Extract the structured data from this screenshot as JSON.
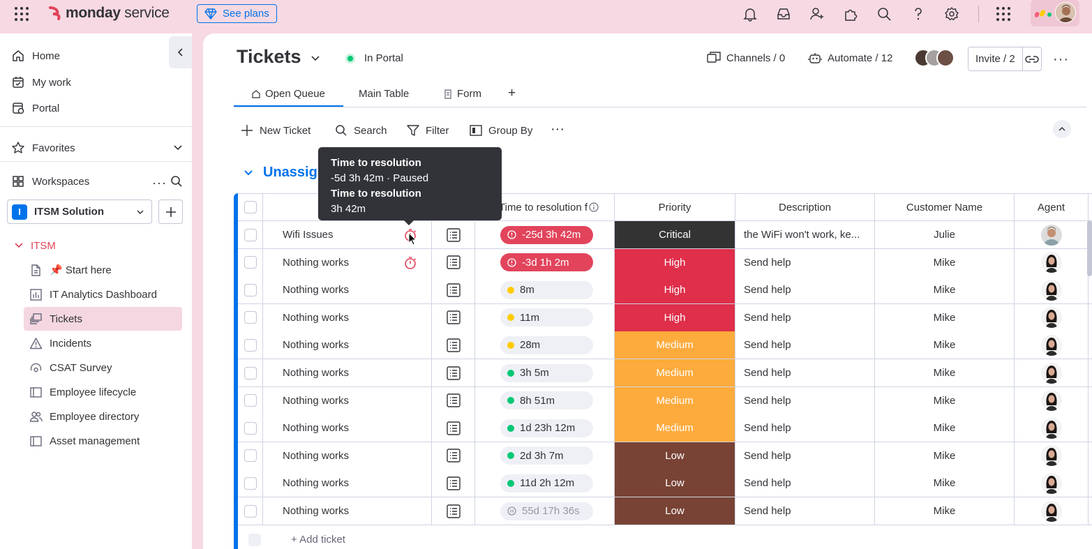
{
  "topbar": {
    "brand_bold": "monday",
    "brand_light": " service",
    "see_plans": "See plans",
    "icons": [
      "notifications-icon",
      "inbox-icon",
      "invite-members-icon",
      "apps-icon",
      "search-icon",
      "help-icon",
      "settings-icon",
      "app-launcher-icon"
    ]
  },
  "sidebar": {
    "nav": [
      {
        "label": "Home",
        "icon": "home-icon"
      },
      {
        "label": "My work",
        "icon": "my-work-icon"
      },
      {
        "label": "Portal",
        "icon": "portal-icon"
      }
    ],
    "favorites": "Favorites",
    "workspaces": "Workspaces",
    "workspace_badge": "I",
    "workspace_name": "ITSM Solution",
    "folder": "ITSM",
    "items": [
      {
        "label": "📌 Start here",
        "icon": "doc-icon"
      },
      {
        "label": "IT Analytics Dashboard",
        "icon": "dashboard-icon"
      },
      {
        "label": "Tickets",
        "icon": "board-icon",
        "active": true
      },
      {
        "label": "Incidents",
        "icon": "warning-icon"
      },
      {
        "label": "CSAT Survey",
        "icon": "survey-icon"
      },
      {
        "label": "Employee lifecycle",
        "icon": "board-icon"
      },
      {
        "label": "Employee directory",
        "icon": "people-icon"
      },
      {
        "label": "Asset management",
        "icon": "board-icon"
      }
    ]
  },
  "board": {
    "title": "Tickets",
    "portal_status": "In Portal",
    "channels": "Channels / 0",
    "automate": "Automate / 12",
    "invite": "Invite / 2",
    "tabs": [
      "Open Queue",
      "Main Table",
      "Form",
      "+"
    ],
    "toolbar": {
      "new": "New Ticket",
      "search": "Search",
      "filter": "Filter",
      "group_by": "Group By"
    },
    "group_title": "Unassig"
  },
  "table": {
    "columns": {
      "time": "Time to resolution f",
      "priority": "Priority",
      "description": "Description",
      "customer": "Customer Name",
      "agent": "Agent"
    },
    "rows": [
      {
        "name": "Wifi Issues",
        "timer": true,
        "ttr": "-25d 3h 42m",
        "ttr_style": "red",
        "priority": "Critical",
        "desc": "the WiFi won't work, ke...",
        "customer": "Julie"
      },
      {
        "name": "Nothing works",
        "timer": true,
        "ttr": "-3d 1h 2m",
        "ttr_style": "red",
        "priority": "High",
        "desc": "Send help",
        "customer": "Mike"
      },
      {
        "name": "Nothing works",
        "timer": false,
        "ttr": "8m",
        "ttr_style": "yellow",
        "priority": "High",
        "desc": "Send help",
        "customer": "Mike"
      },
      {
        "name": "Nothing works",
        "timer": false,
        "ttr": "11m",
        "ttr_style": "yellow",
        "priority": "High",
        "desc": "Send help",
        "customer": "Mike"
      },
      {
        "name": "Nothing works",
        "timer": false,
        "ttr": "28m",
        "ttr_style": "yellow",
        "priority": "Medium",
        "desc": "Send help",
        "customer": "Mike"
      },
      {
        "name": "Nothing works",
        "timer": false,
        "ttr": "3h 5m",
        "ttr_style": "green",
        "priority": "Medium",
        "desc": "Send help",
        "customer": "Mike"
      },
      {
        "name": "Nothing works",
        "timer": false,
        "ttr": "8h 51m",
        "ttr_style": "green",
        "priority": "Medium",
        "desc": "Send help",
        "customer": "Mike"
      },
      {
        "name": "Nothing works",
        "timer": false,
        "ttr": "1d 23h 12m",
        "ttr_style": "green",
        "priority": "Medium",
        "desc": "Send help",
        "customer": "Mike"
      },
      {
        "name": "Nothing works",
        "timer": false,
        "ttr": "2d 3h 7m",
        "ttr_style": "green",
        "priority": "Low",
        "desc": "Send help",
        "customer": "Mike"
      },
      {
        "name": "Nothing works",
        "timer": false,
        "ttr": "11d 2h 12m",
        "ttr_style": "green",
        "priority": "Low",
        "desc": "Send help",
        "customer": "Mike"
      },
      {
        "name": "Nothing works",
        "timer": false,
        "ttr": "55d 17h 36s",
        "ttr_style": "paused",
        "priority": "Low",
        "desc": "Send help",
        "customer": "Mike"
      }
    ],
    "add_ticket": "+ Add ticket"
  },
  "tooltip": {
    "title1": "Time to resolution",
    "value1": "-5d 3h 42m · Paused",
    "title2": "Time to resolution",
    "value2": "3h 42m"
  },
  "colors": {
    "accent": "#0073ea",
    "critical": "#333333",
    "high": "#df2f4a",
    "medium": "#fdab3d",
    "low": "#784335",
    "red_pill": "#e2445c",
    "yellow_dot": "#ffcb00",
    "green_dot": "#00c875"
  }
}
